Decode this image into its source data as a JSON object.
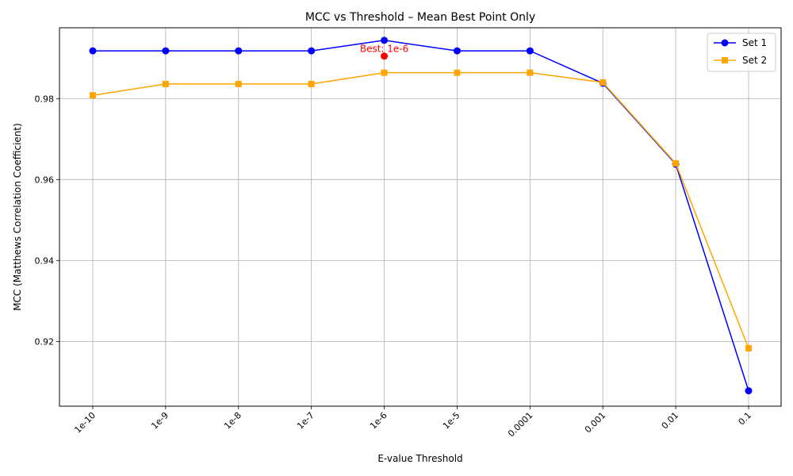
{
  "chart_data": {
    "type": "line",
    "title": "MCC vs Threshold – Mean Best Point Only",
    "xlabel": "E-value Threshold",
    "ylabel": "MCC (Matthews Correlation Coefficient)",
    "categories": [
      "1e-10",
      "1e-9",
      "1e-8",
      "1e-7",
      "1e-6",
      "1e-5",
      "0.0001",
      "0.001",
      "0.01",
      "0.1"
    ],
    "ylim": [
      0.904,
      0.9975
    ],
    "yticks": [
      0.92,
      0.94,
      0.96,
      0.98
    ],
    "ytick_labels": [
      "0.92",
      "0.94",
      "0.96",
      "0.98"
    ],
    "grid": true,
    "legend_position": "top-right",
    "series": [
      {
        "name": "Set 1",
        "color": "#0000ff",
        "marker": "circle",
        "values": [
          0.9918,
          0.9918,
          0.9918,
          0.9918,
          0.9944,
          0.9918,
          0.9918,
          0.9838,
          0.9638,
          0.9078
        ]
      },
      {
        "name": "Set 2",
        "color": "#ffa500",
        "marker": "square",
        "values": [
          0.9808,
          0.9836,
          0.9836,
          0.9836,
          0.9864,
          0.9864,
          0.9864,
          0.984,
          0.964,
          0.9183
        ]
      }
    ],
    "annotation": {
      "text": "Best: 1e-6",
      "category": "1e-6",
      "value": 0.9905,
      "color": "#ff0000"
    }
  }
}
